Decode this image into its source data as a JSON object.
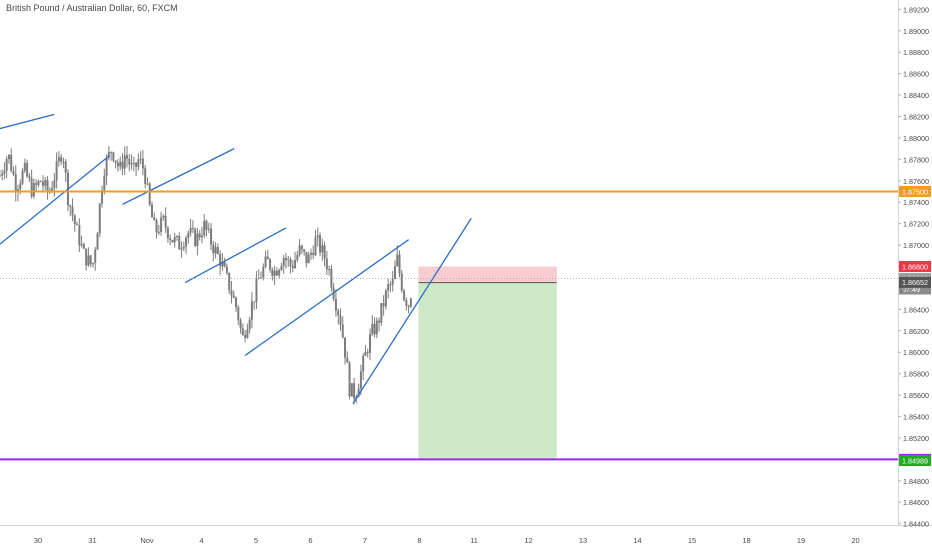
{
  "chart_title": "British Pound / Australian Dollar, 60, FXCM",
  "chart_data": {
    "type": "candlestick",
    "title": "British Pound / Australian Dollar, 60, FXCM",
    "symbol": "British Pound / Australian Dollar",
    "interval": "60",
    "broker": "FXCM",
    "ylim": [
      1.8435,
      1.8925
    ],
    "y_ticks": [
      "1.89200",
      "1.89000",
      "1.88800",
      "1.88600",
      "1.88400",
      "1.88200",
      "1.88000",
      "1.87800",
      "1.87600",
      "1.87400",
      "1.87200",
      "1.87000",
      "1.86800",
      "1.86600",
      "1.86400",
      "1.86200",
      "1.86000",
      "1.85800",
      "1.85600",
      "1.85400",
      "1.85200",
      "1.85000",
      "1.84800",
      "1.84600",
      "1.84400"
    ],
    "x_ticks": [
      {
        "label": "30",
        "day": 0
      },
      {
        "label": "31",
        "day": 1
      },
      {
        "label": "Nov",
        "day": 2
      },
      {
        "label": "4",
        "day": 3
      },
      {
        "label": "5",
        "day": 4
      },
      {
        "label": "6",
        "day": 5
      },
      {
        "label": "7",
        "day": 6
      },
      {
        "label": "8",
        "day": 7
      },
      {
        "label": "11",
        "day": 8
      },
      {
        "label": "12",
        "day": 9
      },
      {
        "label": "13",
        "day": 10
      },
      {
        "label": "14",
        "day": 11
      },
      {
        "label": "15",
        "day": 12
      },
      {
        "label": "18",
        "day": 13
      },
      {
        "label": "19",
        "day": 14
      },
      {
        "label": "20",
        "day": 15
      }
    ],
    "price_path": [
      [
        -0.7,
        1.8765
      ],
      [
        -0.55,
        1.8785
      ],
      [
        -0.4,
        1.8755
      ],
      [
        -0.25,
        1.877
      ],
      [
        -0.1,
        1.875
      ],
      [
        0.05,
        1.876
      ],
      [
        0.2,
        1.8748
      ],
      [
        0.35,
        1.8772
      ],
      [
        0.45,
        1.879
      ],
      [
        0.55,
        1.8745
      ],
      [
        0.7,
        1.8715
      ],
      [
        0.85,
        1.869
      ],
      [
        1.0,
        1.868
      ],
      [
        1.1,
        1.872
      ],
      [
        1.2,
        1.877
      ],
      [
        1.35,
        1.879
      ],
      [
        1.5,
        1.877
      ],
      [
        1.6,
        1.8785
      ],
      [
        1.75,
        1.8768
      ],
      [
        1.85,
        1.878
      ],
      [
        1.95,
        1.877
      ],
      [
        2.05,
        1.8735
      ],
      [
        2.15,
        1.8712
      ],
      [
        2.3,
        1.8722
      ],
      [
        2.45,
        1.8706
      ],
      [
        2.6,
        1.87
      ],
      [
        2.75,
        1.8712
      ],
      [
        2.9,
        1.8705
      ],
      [
        3.05,
        1.8718
      ],
      [
        3.2,
        1.87
      ],
      [
        3.35,
        1.8685
      ],
      [
        3.5,
        1.8663
      ],
      [
        3.65,
        1.864
      ],
      [
        3.75,
        1.8612
      ],
      [
        3.9,
        1.864
      ],
      [
        4.05,
        1.8668
      ],
      [
        4.2,
        1.8685
      ],
      [
        4.35,
        1.8675
      ],
      [
        4.5,
        1.869
      ],
      [
        4.65,
        1.868
      ],
      [
        4.8,
        1.8695
      ],
      [
        4.95,
        1.8685
      ],
      [
        5.1,
        1.8705
      ],
      [
        5.25,
        1.869
      ],
      [
        5.35,
        1.8675
      ],
      [
        5.45,
        1.865
      ],
      [
        5.55,
        1.863
      ],
      [
        5.65,
        1.8595
      ],
      [
        5.72,
        1.8565
      ],
      [
        5.82,
        1.856
      ],
      [
        5.92,
        1.858
      ],
      [
        6.02,
        1.86
      ],
      [
        6.12,
        1.8618
      ],
      [
        6.22,
        1.8625
      ],
      [
        6.32,
        1.8642
      ],
      [
        6.42,
        1.866
      ],
      [
        6.52,
        1.8665
      ],
      [
        6.58,
        1.869
      ],
      [
        6.64,
        1.8672
      ],
      [
        6.72,
        1.8652
      ],
      [
        6.8,
        1.8645
      ],
      [
        6.88,
        1.8665
      ]
    ],
    "horizontal_levels": [
      {
        "price": 1.875,
        "label": "1.87500",
        "color": "#f59a23"
      },
      {
        "price": 1.85,
        "label": "1.85000",
        "color": "#9c27f0"
      }
    ],
    "price_labels": [
      {
        "price": 1.868,
        "label": "1.86800",
        "bg": "#f23645"
      },
      {
        "price": 1.86688,
        "label": "1.86688",
        "bg": "#9e9e9e"
      },
      {
        "price": 1.8659,
        "label": "07:49",
        "bg": "#8c8c8c"
      },
      {
        "price": 1.86652,
        "label": "1.86652",
        "bg": "#555555"
      },
      {
        "price": 1.84989,
        "label": "1.84989",
        "bg": "#22ab22"
      }
    ],
    "last_price_label": "1",
    "trendlines": [
      {
        "from": [
          -0.75,
          1.8808
        ],
        "to": [
          0.3,
          1.8822
        ],
        "color": "#2a6ec6"
      },
      {
        "from": [
          -0.72,
          1.87
        ],
        "to": [
          1.3,
          1.8783
        ],
        "color": "#2a6ec6"
      },
      {
        "from": [
          1.55,
          1.8738
        ],
        "to": [
          3.6,
          1.879
        ],
        "color": "#2a6ec6"
      },
      {
        "from": [
          2.7,
          1.8665
        ],
        "to": [
          4.55,
          1.8716
        ],
        "color": "#2a6ec6"
      },
      {
        "from": [
          3.8,
          1.8597
        ],
        "to": [
          6.8,
          1.8705
        ],
        "color": "#2a6ec6"
      },
      {
        "from": [
          5.78,
          1.8552
        ],
        "to": [
          7.95,
          1.8725
        ],
        "color": "#2a6ec6"
      }
    ],
    "short_position": {
      "entry": 1.8665,
      "stop": 1.868,
      "target": 1.85,
      "day_start": 6.98,
      "day_end": 9.52,
      "risk_color": "#f8cdd0",
      "reward_color": "#cde9c8"
    },
    "candle_color": "#7c7c7c",
    "grid": false
  }
}
